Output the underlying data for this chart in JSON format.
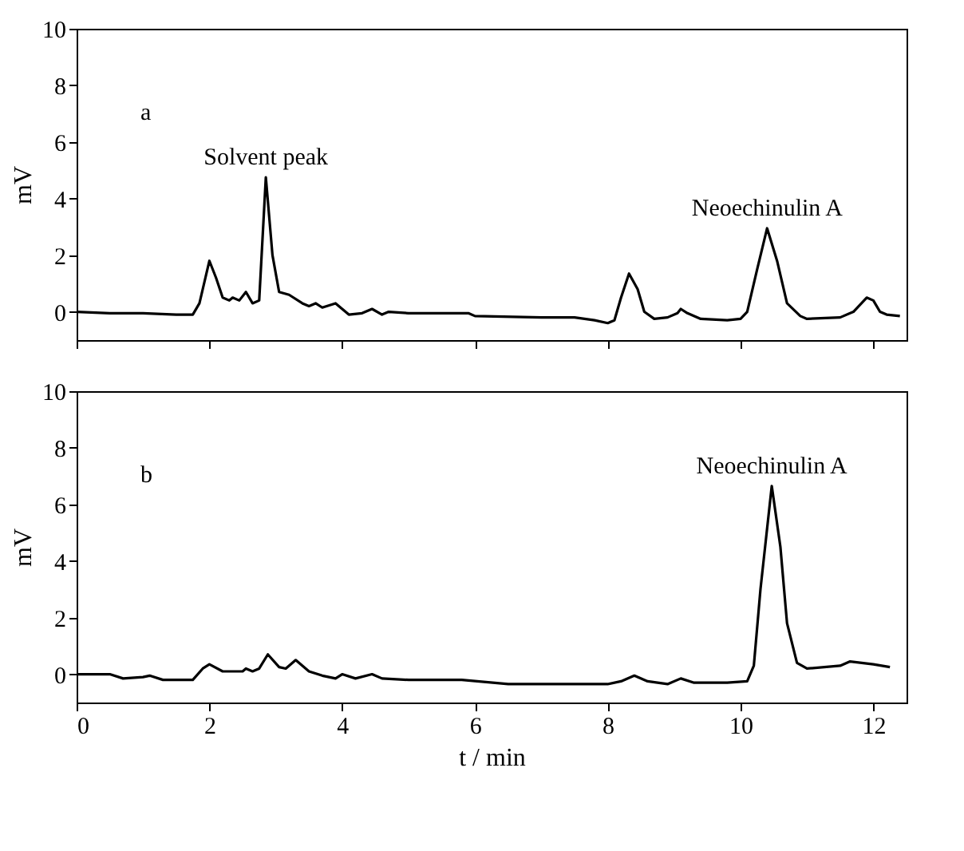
{
  "chart_data": [
    {
      "type": "line",
      "ylabel": "mV",
      "xlim": [
        0,
        12.5
      ],
      "ylim": [
        -1,
        10
      ],
      "xticks": [
        0,
        2,
        4,
        6,
        8,
        10,
        12
      ],
      "yticks": [
        0,
        2,
        4,
        6,
        8,
        10
      ],
      "tick_labels": "y",
      "grid": false,
      "marker": "none",
      "line_style": "solid",
      "annotations": [
        "a",
        {
          "text": "Solvent peak",
          "x": 2.85,
          "y": 4.75
        },
        {
          "text": "Neoechinulin A",
          "x": 10.4,
          "y": 2.95
        }
      ],
      "series": [
        {
          "color": "#000000",
          "x": [
            0,
            0.5,
            1.0,
            1.5,
            1.75,
            1.85,
            2.0,
            2.1,
            2.2,
            2.3,
            2.35,
            2.45,
            2.55,
            2.65,
            2.75,
            2.85,
            2.95,
            3.05,
            3.2,
            3.4,
            3.5,
            3.6,
            3.7,
            3.9,
            4.0,
            4.1,
            4.3,
            4.45,
            4.6,
            4.7,
            5.0,
            5.5,
            5.9,
            6.0,
            7.0,
            7.5,
            7.8,
            8.0,
            8.1,
            8.2,
            8.32,
            8.45,
            8.55,
            8.7,
            8.9,
            9.05,
            9.1,
            9.2,
            9.4,
            9.8,
            10.0,
            10.1,
            10.25,
            10.4,
            10.55,
            10.7,
            10.9,
            11.0,
            11.5,
            11.7,
            11.9,
            12.0,
            12.1,
            12.2,
            12.4
          ],
          "values": [
            0.0,
            -0.05,
            -0.05,
            -0.1,
            -0.1,
            0.3,
            1.8,
            1.2,
            0.5,
            0.4,
            0.5,
            0.4,
            0.7,
            0.3,
            0.4,
            4.75,
            2.0,
            0.7,
            0.6,
            0.3,
            0.2,
            0.3,
            0.15,
            0.3,
            0.1,
            -0.1,
            -0.05,
            0.1,
            -0.1,
            0.0,
            -0.05,
            -0.05,
            -0.05,
            -0.15,
            -0.2,
            -0.2,
            -0.3,
            -0.4,
            -0.3,
            0.5,
            1.35,
            0.8,
            0.0,
            -0.25,
            -0.2,
            -0.05,
            0.1,
            -0.05,
            -0.25,
            -0.3,
            -0.25,
            0.0,
            1.5,
            2.95,
            1.8,
            0.3,
            -0.15,
            -0.25,
            -0.2,
            0.0,
            0.5,
            0.4,
            0.0,
            -0.1,
            -0.15
          ]
        }
      ]
    },
    {
      "type": "line",
      "xlabel": "t / min",
      "ylabel": "mV",
      "xlim": [
        0,
        12.5
      ],
      "ylim": [
        -1,
        10
      ],
      "xticks": [
        0,
        2,
        4,
        6,
        8,
        10,
        12
      ],
      "yticks": [
        0,
        2,
        4,
        6,
        8,
        10
      ],
      "grid": false,
      "marker": "none",
      "line_style": "solid",
      "annotations": [
        "b",
        {
          "text": "Neoechinulin A",
          "x": 10.47,
          "y": 6.65
        }
      ],
      "series": [
        {
          "color": "#000000",
          "x": [
            0,
            0.5,
            0.7,
            1.0,
            1.1,
            1.3,
            1.75,
            1.9,
            2.0,
            2.2,
            2.35,
            2.5,
            2.55,
            2.65,
            2.75,
            2.88,
            3.05,
            3.15,
            3.3,
            3.5,
            3.7,
            3.9,
            4.0,
            4.2,
            4.45,
            4.6,
            5.0,
            5.8,
            6.5,
            7.5,
            8.0,
            8.2,
            8.4,
            8.6,
            8.9,
            9.1,
            9.3,
            9.8,
            10.1,
            10.2,
            10.3,
            10.47,
            10.6,
            10.7,
            10.85,
            11.0,
            11.5,
            11.65,
            12.0,
            12.25
          ],
          "values": [
            0.0,
            0.0,
            -0.15,
            -0.1,
            -0.05,
            -0.2,
            -0.2,
            0.2,
            0.35,
            0.1,
            0.1,
            0.1,
            0.2,
            0.1,
            0.2,
            0.7,
            0.25,
            0.2,
            0.5,
            0.1,
            -0.05,
            -0.15,
            0.0,
            -0.15,
            0.0,
            -0.15,
            -0.2,
            -0.2,
            -0.35,
            -0.35,
            -0.35,
            -0.25,
            -0.05,
            -0.25,
            -0.35,
            -0.15,
            -0.3,
            -0.3,
            -0.25,
            0.3,
            3.0,
            6.65,
            4.5,
            1.8,
            0.4,
            0.2,
            0.3,
            0.45,
            0.35,
            0.25
          ]
        }
      ]
    }
  ]
}
